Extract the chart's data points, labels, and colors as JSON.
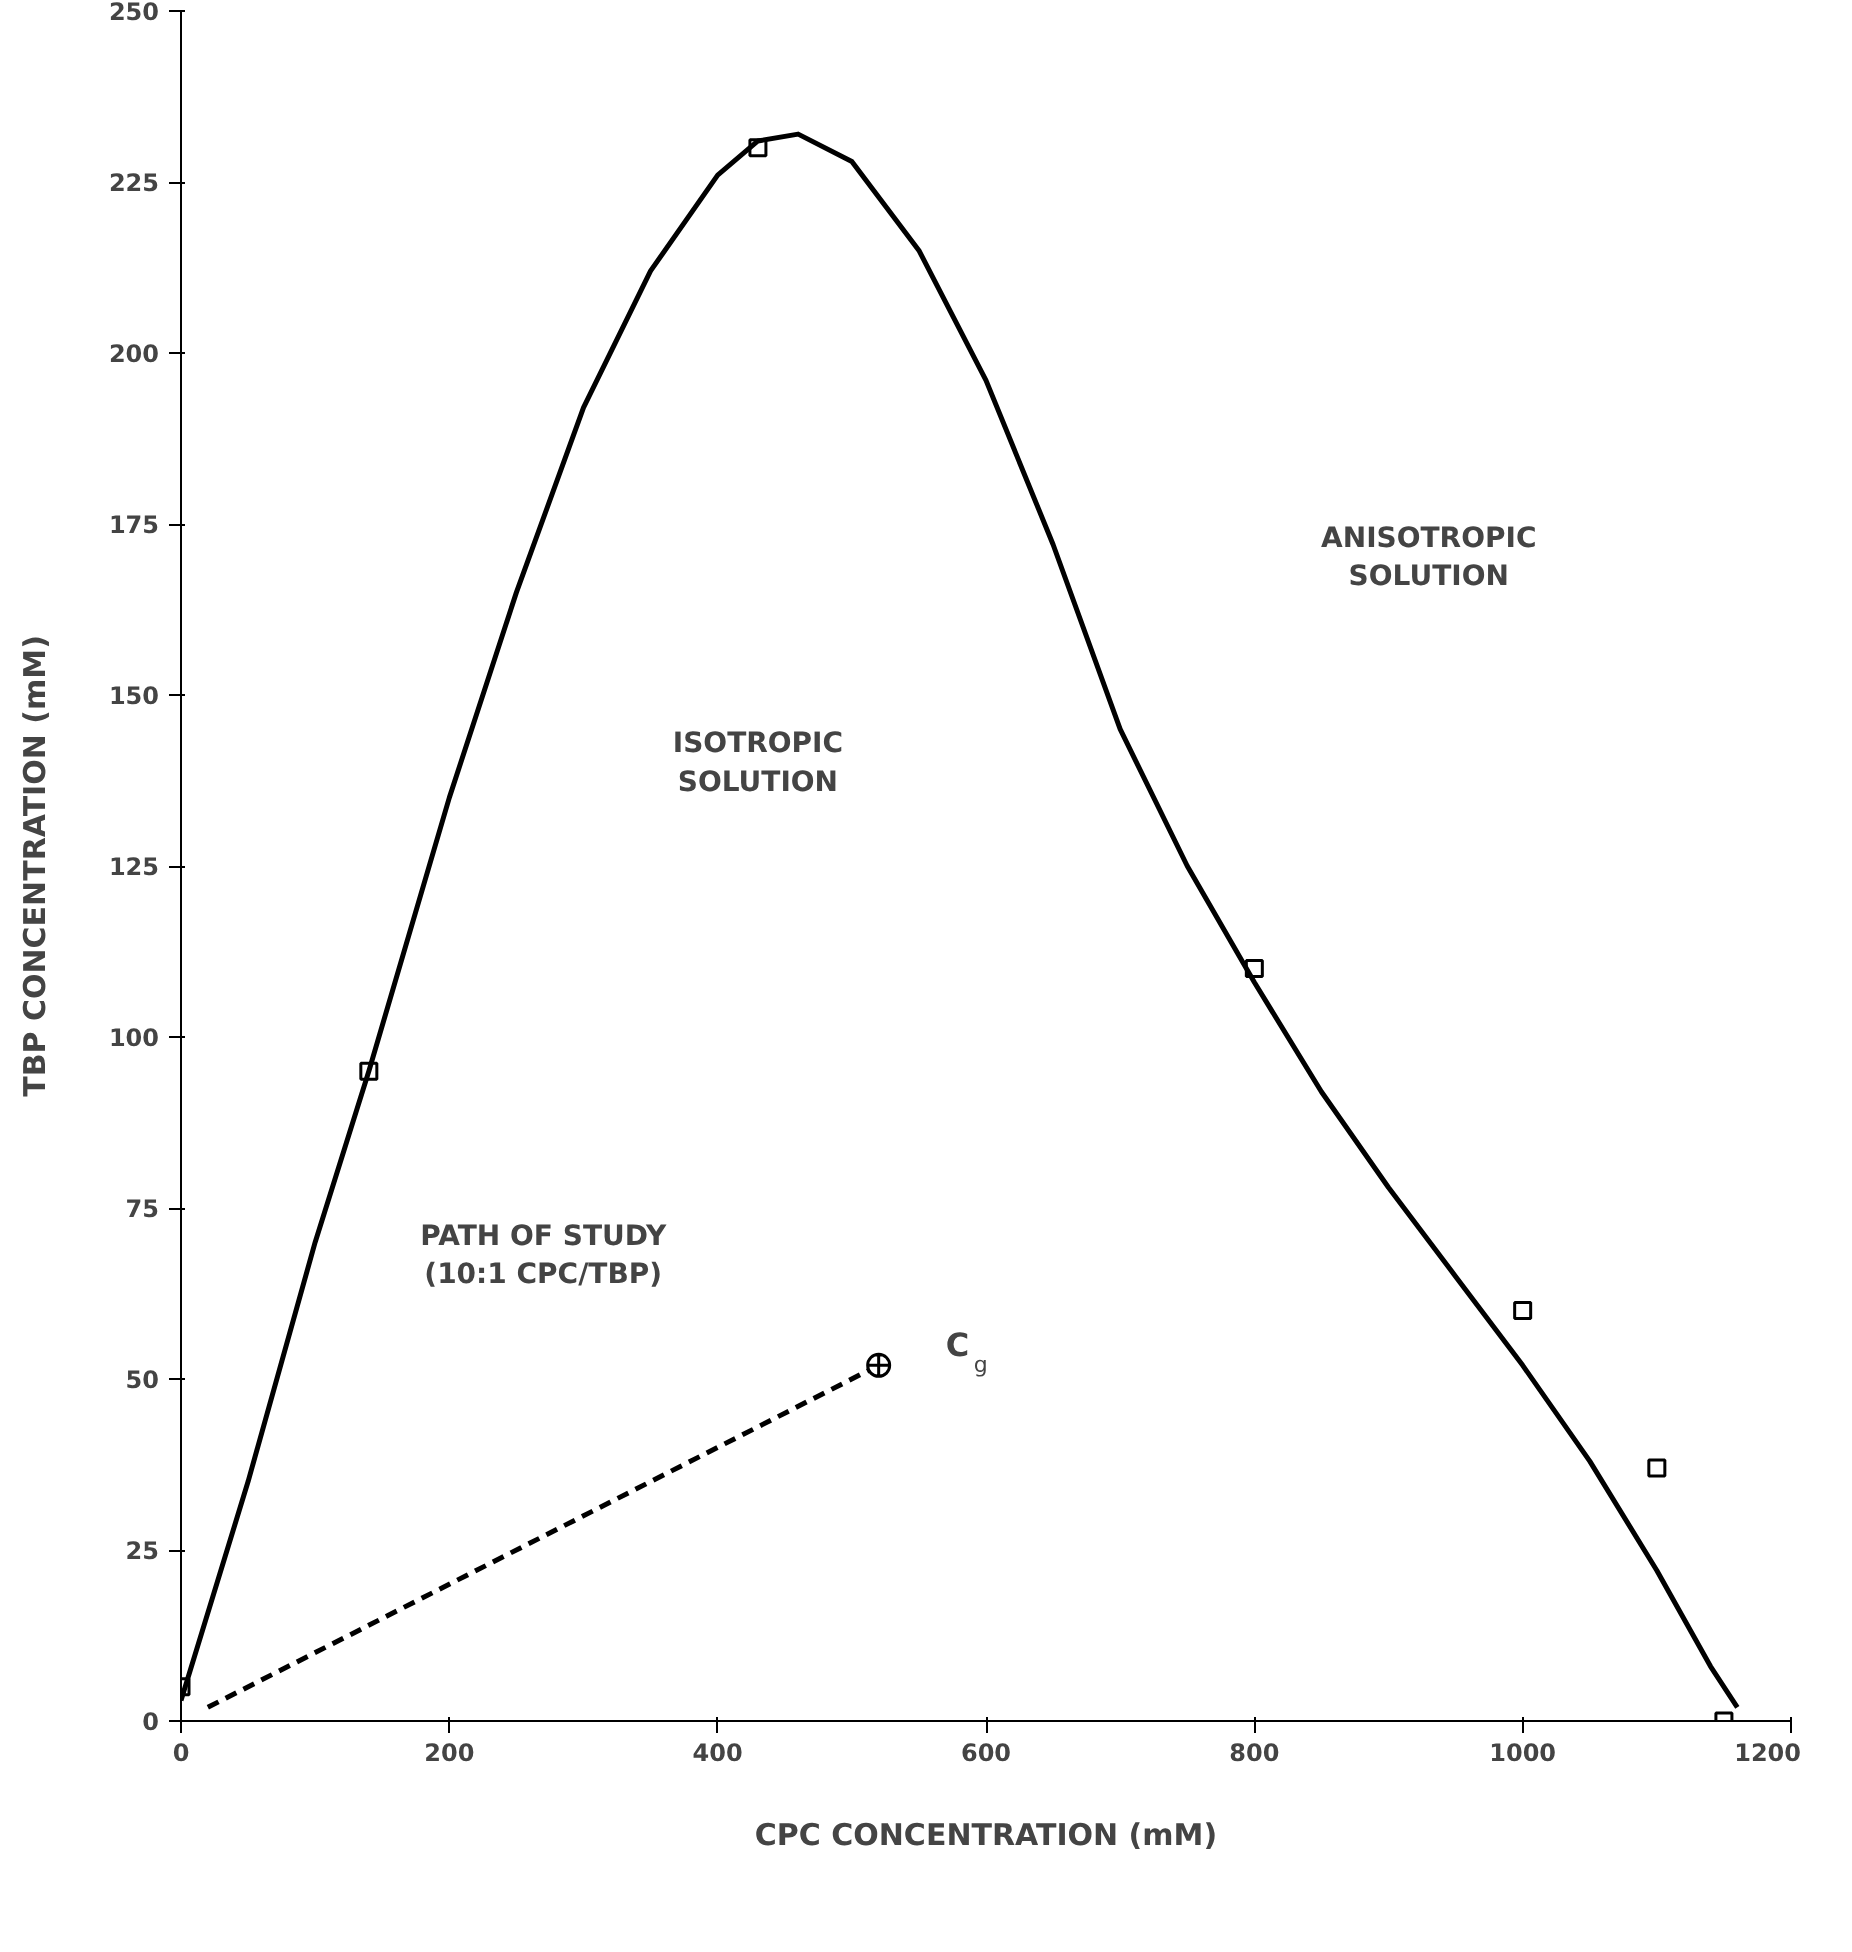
{
  "chart_data": {
    "type": "scatter",
    "xlabel": "CPC CONCENTRATION (mM)",
    "ylabel": "TBP CONCENTRATION (mM)",
    "xlim": [
      0,
      1200
    ],
    "ylim": [
      0,
      250
    ],
    "xticks": [
      0,
      200,
      400,
      600,
      800,
      1000,
      1200
    ],
    "yticks": [
      0,
      25,
      50,
      75,
      100,
      125,
      150,
      175,
      200,
      225,
      250
    ],
    "grid": false,
    "series": [
      {
        "type": "line",
        "color": "#000000",
        "line_style": "solid",
        "x": [
          0,
          50,
          100,
          140,
          200,
          250,
          300,
          350,
          400,
          430,
          460,
          500,
          550,
          600,
          650,
          700,
          750,
          800,
          850,
          900,
          950,
          1000,
          1050,
          1100,
          1140,
          1160
        ],
        "values": [
          3,
          35,
          70,
          95,
          135,
          165,
          192,
          212,
          226,
          231,
          232,
          228,
          215,
          196,
          172,
          145,
          125,
          108,
          92,
          78,
          65,
          52,
          38,
          22,
          8,
          2
        ]
      },
      {
        "color": "#000000",
        "marker": "square",
        "x": [
          0,
          140,
          430,
          800,
          1000,
          1100,
          1150
        ],
        "values": [
          5,
          95,
          230,
          110,
          60,
          37,
          0
        ]
      },
      {
        "type": "line",
        "color": "#000000",
        "line_style": "dashed",
        "x": [
          20,
          520
        ],
        "values": [
          2,
          52
        ]
      },
      {
        "color": "#000000",
        "marker": "circle_cross",
        "x": [
          520
        ],
        "values": [
          52
        ]
      }
    ],
    "annotations": [
      "ISOTROPIC\nSOLUTION",
      "ANISOTROPIC\nSOLUTION",
      "PATH OF STUDY\n(10:1 CPC/TBP)",
      "C$_{g}$"
    ]
  }
}
